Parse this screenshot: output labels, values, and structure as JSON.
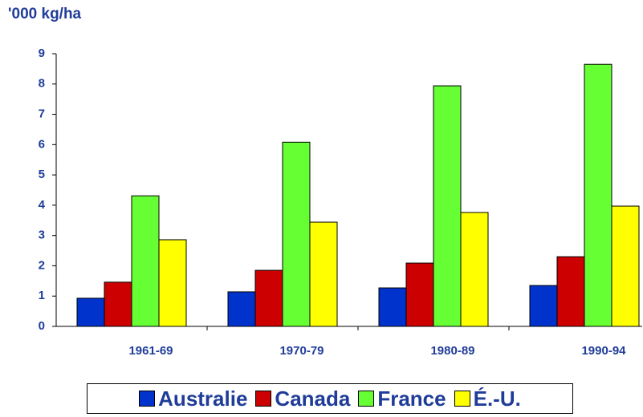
{
  "chart_data": {
    "type": "bar",
    "y_axis_label": "'000 kg/ha",
    "categories": [
      "1961-69",
      "1970-79",
      "1980-89",
      "1990-94"
    ],
    "series": [
      {
        "name": "Australie",
        "color": "#0033cc",
        "values": [
          0.93,
          1.14,
          1.27,
          1.35
        ]
      },
      {
        "name": "Canada",
        "color": "#cc0000",
        "values": [
          1.46,
          1.85,
          2.09,
          2.3
        ]
      },
      {
        "name": "France",
        "color": "#66ff33",
        "values": [
          4.31,
          6.08,
          7.94,
          8.65
        ]
      },
      {
        "name": "É.-U.",
        "color": "#ffff00",
        "values": [
          2.86,
          3.44,
          3.76,
          3.97
        ]
      }
    ],
    "ylim": [
      0,
      9
    ],
    "yticks": [
      0,
      1,
      2,
      3,
      4,
      5,
      6,
      7,
      8,
      9
    ],
    "legend": "bottom"
  }
}
